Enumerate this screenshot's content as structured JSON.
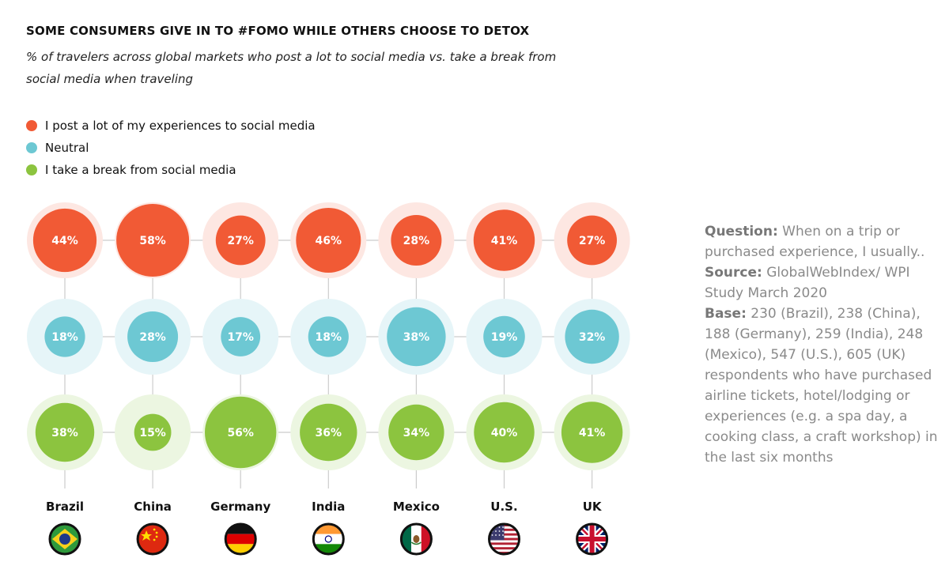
{
  "title": "SOME CONSUMERS GIVE IN TO #FOMO WHILE OTHERS CHOOSE TO DETOX",
  "subtitle": "% of travelers across global markets who post a lot to social media vs. take a break from social media when traveling",
  "legend": [
    {
      "label": "I post a lot of my experiences to social media",
      "color": "#f15a35"
    },
    {
      "label": "Neutral",
      "color": "#6dc8d3"
    },
    {
      "label": "I take a break from social media",
      "color": "#8cc43f"
    }
  ],
  "chart_data": {
    "type": "bubble-grid",
    "categories": [
      "Brazil",
      "China",
      "Germany",
      "India",
      "Mexico",
      "U.S.",
      "UK"
    ],
    "series": [
      {
        "name": "I post a lot of my experiences to social media",
        "color": "#f15a35",
        "halo": "#fde7e2",
        "values": [
          44,
          58,
          27,
          46,
          28,
          41,
          27
        ],
        "labels": [
          "44%",
          "58%",
          "27%",
          "46%",
          "28%",
          "41%",
          "27%"
        ]
      },
      {
        "name": "Neutral",
        "color": "#6dc8d3",
        "halo": "#e6f5f8",
        "values": [
          18,
          28,
          17,
          18,
          38,
          19,
          32
        ],
        "labels": [
          "18%",
          "28%",
          "17%",
          "18%",
          "38%",
          "19%",
          "32%"
        ]
      },
      {
        "name": "I take a break from social media",
        "color": "#8cc43f",
        "halo": "#ecf6e1",
        "values": [
          38,
          15,
          56,
          36,
          34,
          40,
          41
        ],
        "labels": [
          "38%",
          "15%",
          "56%",
          "36%",
          "34%",
          "40%",
          "41%"
        ]
      }
    ],
    "max_value": 58
  },
  "flags": [
    "brazil-flag-icon",
    "china-flag-icon",
    "germany-flag-icon",
    "india-flag-icon",
    "mexico-flag-icon",
    "us-flag-icon",
    "uk-flag-icon"
  ],
  "notes": {
    "question_label": "Question:",
    "question_text": " When on a trip or purchased experience, I usually..",
    "source_label": "Source:",
    "source_text": " GlobalWebIndex/ WPI Study March 2020",
    "base_label": "Base:",
    "base_text": " 230 (Brazil), 238 (China), 188 (Germany), 259 (India), 248 (Mexico), 547 (U.S.), 605 (UK) respondents who have purchased airline tickets, hotel/lodging or experiences (e.g. a spa day, a cooking class, a craft workshop) in the last six months"
  }
}
